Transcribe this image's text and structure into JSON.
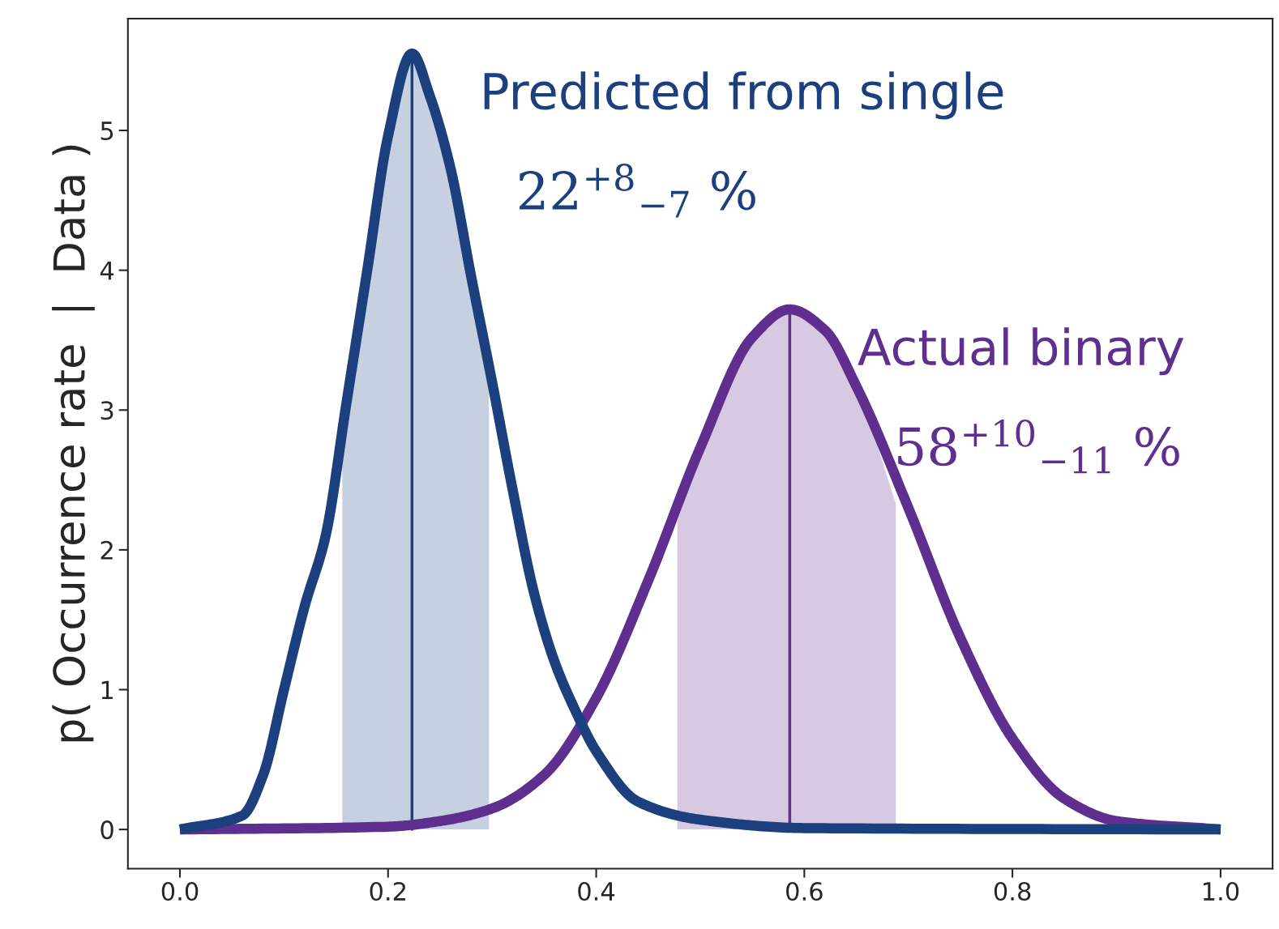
{
  "chart_data": {
    "type": "line",
    "ylabel": "p( Occurrence rate  |  Data )",
    "xlim": [
      -0.05,
      1.05
    ],
    "ylim": [
      -0.28,
      5.8
    ],
    "xticks": [
      {
        "value": 0,
        "label": "0.0"
      },
      {
        "value": 0.2,
        "label": "0.2"
      },
      {
        "value": 0.4,
        "label": "0.4"
      },
      {
        "value": 0.6,
        "label": "0.6"
      },
      {
        "value": 0.8,
        "label": "0.8"
      },
      {
        "value": 1,
        "label": "1.0"
      }
    ],
    "yticks": [
      0,
      1,
      2,
      3,
      4,
      5
    ],
    "grid": false,
    "legend": false,
    "series": [
      {
        "type": "area",
        "color": "#d8c9e3",
        "x": [
          0.478,
          0.5,
          0.55,
          0.586,
          0.62,
          0.65,
          0.688
        ],
        "values": [
          2.2,
          2.73,
          3.52,
          3.72,
          3.57,
          3.17,
          2.33
        ]
      },
      {
        "type": "area",
        "color": "#c6d0e0",
        "x": [
          0.156,
          0.16,
          0.18,
          0.2,
          0.223,
          0.24,
          0.26,
          0.28,
          0.297
        ],
        "values": [
          2.9,
          3.05,
          4.0,
          4.96,
          5.55,
          5.25,
          4.73,
          3.95,
          3.3
        ]
      },
      {
        "name": "Actual binary",
        "color": "#5f2f8f",
        "x": [
          0.0,
          0.2,
          0.25,
          0.3,
          0.35,
          0.4,
          0.45,
          0.5,
          0.55,
          0.586,
          0.62,
          0.65,
          0.7,
          0.75,
          0.8,
          0.85,
          0.9,
          1.0
        ],
        "values": [
          0,
          0.02,
          0.06,
          0.15,
          0.39,
          0.94,
          1.78,
          2.73,
          3.52,
          3.72,
          3.57,
          3.17,
          2.3,
          1.37,
          0.65,
          0.22,
          0.06,
          0
        ]
      },
      {
        "name": "Predicted from single",
        "color": "#1c3f7e",
        "x": [
          0.0,
          0.06,
          0.08,
          0.1,
          0.12,
          0.14,
          0.16,
          0.18,
          0.2,
          0.223,
          0.24,
          0.26,
          0.28,
          0.3,
          0.32,
          0.34,
          0.36,
          0.38,
          0.4,
          0.44,
          0.5,
          0.6,
          1.0
        ],
        "values": [
          0,
          0.1,
          0.39,
          1.0,
          1.6,
          2.1,
          3.05,
          4.0,
          4.96,
          5.55,
          5.25,
          4.73,
          3.95,
          3.2,
          2.42,
          1.7,
          1.2,
          0.85,
          0.56,
          0.2,
          0.07,
          0.01,
          0
        ]
      }
    ],
    "ref_lines": [
      {
        "axis": "x",
        "value": 0.586,
        "color": "#5f2f8f"
      },
      {
        "axis": "x",
        "value": 0.223,
        "color": "#1c3f7e"
      }
    ],
    "annotations": [
      {
        "text": "58$^{+10}$$_{−11}$ %",
        "x": 0.586,
        "y": 3.72
      },
      {
        "text": "22$^{+8}$$_{−7}$ %",
        "x": 0.223,
        "y": 5.55
      }
    ]
  }
}
